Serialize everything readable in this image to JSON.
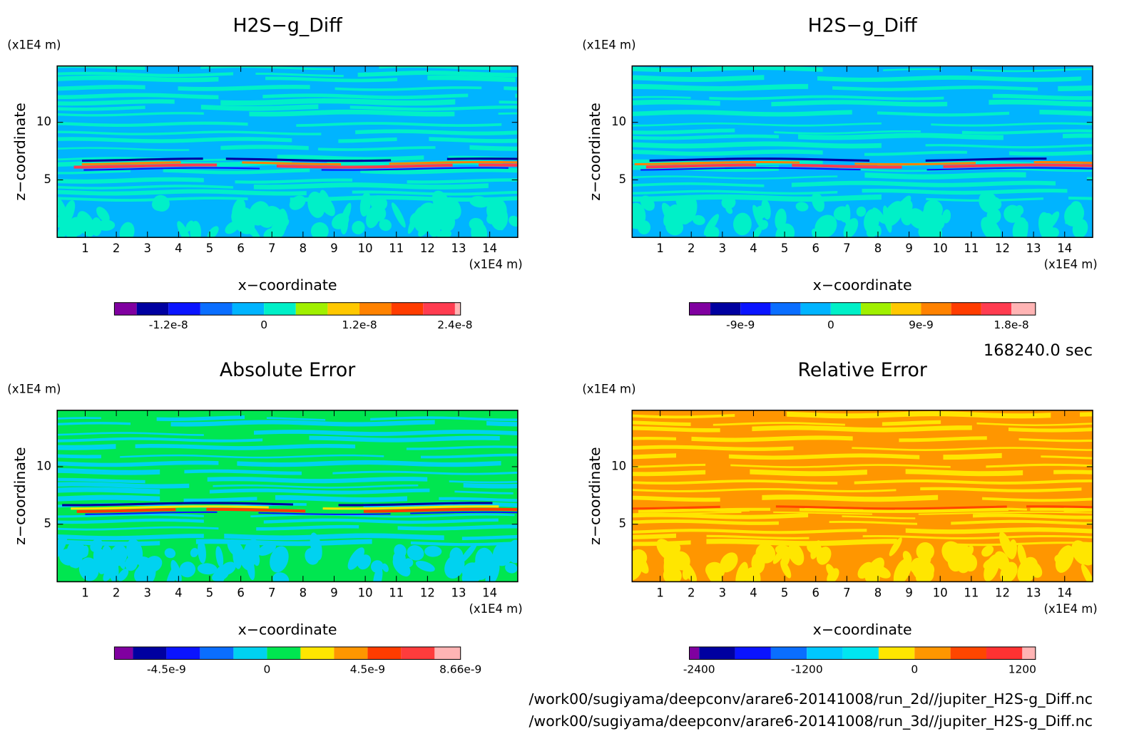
{
  "chart_data": [
    {
      "type": "contour",
      "title": "H2S−g_Diff",
      "x_label": "x−coordinate",
      "y_label": "z−coordinate",
      "x_unit_label": "(x1E4 m)",
      "y_unit_label": "(x1E4 m)",
      "xlim": [
        0.1,
        14.9
      ],
      "ylim": [
        0,
        14.9
      ],
      "xticks": [
        1,
        2,
        3,
        4,
        5,
        6,
        7,
        8,
        9,
        10,
        11,
        12,
        13,
        14
      ],
      "yticks": [
        5,
        10
      ],
      "colorbar": {
        "levels": [
          -1.88e-08,
          -1.6e-08,
          -1.2e-08,
          -8e-09,
          -4e-09,
          0,
          4e-09,
          8e-09,
          1.2e-08,
          1.6e-08,
          2e-08,
          2.4e-08,
          2.47e-08
        ],
        "colors": [
          "#8000a0",
          "#0000a0",
          "#0a14ff",
          "#0a6eff",
          "#00b4ff",
          "#00f0c8",
          "#a0f000",
          "#ffc800",
          "#ff8200",
          "#ff3c00",
          "#ff3c50",
          "#ffb4b4"
        ],
        "ticks": [
          -1.2e-08,
          0,
          1.2e-08,
          2.4e-08
        ]
      }
    },
    {
      "type": "contour",
      "title": "H2S−g_Diff",
      "x_label": "x−coordinate",
      "y_label": "z−coordinate",
      "x_unit_label": "(x1E4 m)",
      "y_unit_label": "(x1E4 m)",
      "xlim": [
        0.1,
        14.9
      ],
      "ylim": [
        0,
        14.9
      ],
      "xticks": [
        1,
        2,
        3,
        4,
        5,
        6,
        7,
        8,
        9,
        10,
        11,
        12,
        13,
        14
      ],
      "yticks": [
        5,
        10
      ],
      "colorbar": {
        "levels": [
          -1.41e-08,
          -1.2e-08,
          -9e-09,
          -6e-09,
          -3e-09,
          0,
          3e-09,
          6e-09,
          9e-09,
          1.2e-08,
          1.5e-08,
          1.8e-08,
          2.04e-08
        ],
        "colors": [
          "#8000a0",
          "#0000a0",
          "#0a14ff",
          "#0a6eff",
          "#00b4ff",
          "#00f0c8",
          "#a0f000",
          "#ffc800",
          "#ff8200",
          "#ff3c00",
          "#ff3c50",
          "#ffb4b4"
        ],
        "ticks": [
          -9e-09,
          0,
          9e-09,
          1.8e-08
        ]
      }
    },
    {
      "type": "contour",
      "title": "Absolute Error",
      "x_label": "x−coordinate",
      "y_label": "z−coordinate",
      "x_unit_label": "(x1E4 m)",
      "y_unit_label": "(x1E4 m)",
      "xlim": [
        0.1,
        14.9
      ],
      "ylim": [
        0,
        14.9
      ],
      "xticks": [
        1,
        2,
        3,
        4,
        5,
        6,
        7,
        8,
        9,
        10,
        11,
        12,
        13,
        14
      ],
      "yticks": [
        5,
        10
      ],
      "colorbar": {
        "levels": [
          -6.83e-09,
          -6e-09,
          -4.5e-09,
          -3e-09,
          -1.5e-09,
          0,
          1.5e-09,
          3e-09,
          4.5e-09,
          6e-09,
          7.5e-09,
          8.66e-09
        ],
        "colors": [
          "#8000a0",
          "#0000a0",
          "#0a14ff",
          "#0a6eff",
          "#00d2f0",
          "#00e650",
          "#ffe600",
          "#ff9600",
          "#ff3c00",
          "#ff3c3c",
          "#ffb4b4"
        ],
        "ticks": [
          -4.5e-09,
          0,
          4.5e-09,
          8.66e-09
        ]
      }
    },
    {
      "type": "contour",
      "title": "Relative Error",
      "x_label": "x−coordinate",
      "y_label": "z−coordinate",
      "x_unit_label": "(x1E4 m)",
      "y_unit_label": "(x1E4 m)",
      "xlim": [
        0.1,
        14.9
      ],
      "ylim": [
        0,
        14.9
      ],
      "xticks": [
        1,
        2,
        3,
        4,
        5,
        6,
        7,
        8,
        9,
        10,
        11,
        12,
        13,
        14
      ],
      "yticks": [
        5,
        10
      ],
      "colorbar": {
        "levels": [
          -2509,
          -2400,
          -2000,
          -1600,
          -1200,
          -800,
          -400,
          0,
          400,
          800,
          1200,
          1347
        ],
        "colors": [
          "#8000a0",
          "#0000a0",
          "#0a14ff",
          "#0a6eff",
          "#00c8ff",
          "#00e6f0",
          "#ffe600",
          "#ff9600",
          "#ff4600",
          "#ff3232",
          "#ffb4b4"
        ],
        "ticks": [
          -2400,
          -1200,
          0,
          1200
        ]
      }
    }
  ],
  "annotations": {
    "time": "168240.0 sec",
    "file_paths": [
      "/work00/sugiyama/deepconv/arare6-20141008/run_2d//jupiter_H2S-g_Diff.nc",
      "/work00/sugiyama/deepconv/arare6-20141008/run_3d//jupiter_H2S-g_Diff.nc"
    ]
  }
}
